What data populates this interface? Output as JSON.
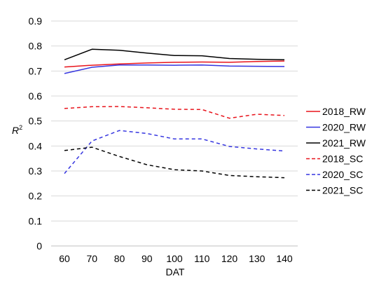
{
  "chart_data": {
    "type": "line",
    "title": "",
    "xlabel": "DAT",
    "ylabel": "R",
    "ylabel_superscript": "2",
    "x": [
      60,
      70,
      80,
      90,
      100,
      110,
      120,
      130,
      140
    ],
    "x_ticks": [
      "60",
      "70",
      "80",
      "90",
      "100",
      "110",
      "120",
      "130",
      "140"
    ],
    "ylim": [
      0,
      0.9
    ],
    "y_ticks": [
      "0",
      "0.1",
      "0.2",
      "0.3",
      "0.4",
      "0.5",
      "0.6",
      "0.7",
      "0.8",
      "0.9"
    ],
    "y_tick_values": [
      0,
      0.1,
      0.2,
      0.3,
      0.4,
      0.5,
      0.6,
      0.7,
      0.8,
      0.9
    ],
    "grid": "horizontal",
    "legend_position": "right",
    "series": [
      {
        "name": "2018_RW",
        "color": "#e8141c",
        "dash": "solid",
        "values": [
          0.716,
          0.723,
          0.728,
          0.732,
          0.735,
          0.736,
          0.735,
          0.738,
          0.74
        ]
      },
      {
        "name": "2020_RW",
        "color": "#3535e0",
        "dash": "solid",
        "values": [
          0.69,
          0.715,
          0.724,
          0.724,
          0.723,
          0.724,
          0.72,
          0.719,
          0.718
        ]
      },
      {
        "name": "2021_RW",
        "color": "#000000",
        "dash": "solid",
        "values": [
          0.745,
          0.787,
          0.783,
          0.772,
          0.762,
          0.761,
          0.75,
          0.747,
          0.745
        ]
      },
      {
        "name": "2018_SC",
        "color": "#e8141c",
        "dash": "dashed",
        "values": [
          0.55,
          0.557,
          0.558,
          0.553,
          0.547,
          0.546,
          0.511,
          0.527,
          0.522
        ]
      },
      {
        "name": "2020_SC",
        "color": "#3535e0",
        "dash": "dashed",
        "values": [
          0.29,
          0.42,
          0.462,
          0.45,
          0.428,
          0.428,
          0.398,
          0.388,
          0.38
        ]
      },
      {
        "name": "2021_SC",
        "color": "#000000",
        "dash": "dashed",
        "values": [
          0.382,
          0.395,
          0.358,
          0.325,
          0.305,
          0.3,
          0.282,
          0.277,
          0.273
        ]
      }
    ]
  }
}
